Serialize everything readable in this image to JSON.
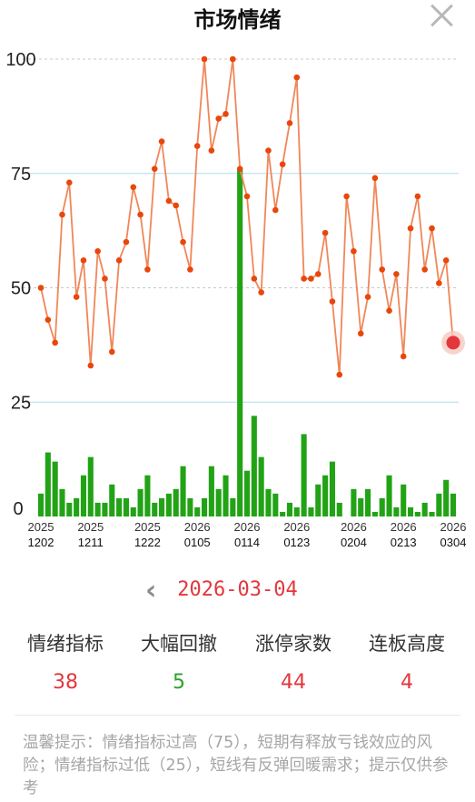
{
  "header": {
    "title": "市场情绪"
  },
  "chart_data": {
    "type": "line+bar",
    "ylim": [
      0,
      100
    ],
    "yticks": [
      0,
      25,
      50,
      75,
      100
    ],
    "xtick_labels": [
      {
        "year": "2025",
        "date": "1202"
      },
      {
        "year": "2025",
        "date": "1211"
      },
      {
        "year": "2025",
        "date": "1222"
      },
      {
        "year": "2026",
        "date": "0105"
      },
      {
        "year": "2026",
        "date": "0114"
      },
      {
        "year": "2026",
        "date": "0123"
      },
      {
        "year": "2026",
        "date": "0204"
      },
      {
        "year": "2026",
        "date": "0213"
      },
      {
        "year": "2026",
        "date": "0304"
      }
    ],
    "line": {
      "name": "情绪指标",
      "values": [
        50,
        43,
        38,
        66,
        73,
        48,
        56,
        33,
        58,
        52,
        36,
        56,
        60,
        72,
        66,
        54,
        76,
        82,
        69,
        68,
        60,
        54,
        81,
        100,
        80,
        87,
        88,
        100,
        76,
        70,
        52,
        49,
        80,
        67,
        77,
        86,
        96,
        52,
        52,
        53,
        62,
        47,
        31,
        70,
        58,
        40,
        48,
        74,
        54,
        45,
        53,
        35,
        63,
        70,
        54,
        63,
        51,
        56,
        38
      ],
      "color": "#f0875a",
      "marker_color": "#e8470c",
      "highlight_color": "#e3373c"
    },
    "bars": {
      "name": "大幅回撤",
      "values": [
        5,
        14,
        12,
        6,
        3,
        4,
        9,
        13,
        3,
        3,
        7,
        4,
        4,
        2,
        6,
        9,
        3,
        4,
        5,
        6,
        11,
        4,
        2,
        4,
        11,
        6,
        9,
        4,
        76,
        10,
        22,
        13,
        6,
        5,
        1,
        3,
        2,
        18,
        2,
        7,
        9,
        12,
        3,
        0,
        6,
        4,
        6,
        1,
        4,
        9,
        2,
        7,
        2,
        1,
        3,
        1,
        5,
        8,
        5
      ],
      "color": "#22a316"
    },
    "gridline_color": "#b4dcea",
    "threshold_lines": [
      100,
      50
    ]
  },
  "date_nav": {
    "current_date": "2026-03-04",
    "prev_icon": "chevron-left-icon"
  },
  "stats": [
    {
      "label": "情绪指标",
      "value": "38",
      "color": "#e3373c"
    },
    {
      "label": "大幅回撤",
      "value": "5",
      "color": "#2ca02c"
    },
    {
      "label": "涨停家数",
      "value": "44",
      "color": "#e3373c"
    },
    {
      "label": "连板高度",
      "value": "4",
      "color": "#e3373c"
    }
  ],
  "tip": "温馨提示：情绪指标过高（75），短期有释放亏钱效应的风险；情绪指标过低（25），短线有反弹回暖需求；提示仅供参考"
}
